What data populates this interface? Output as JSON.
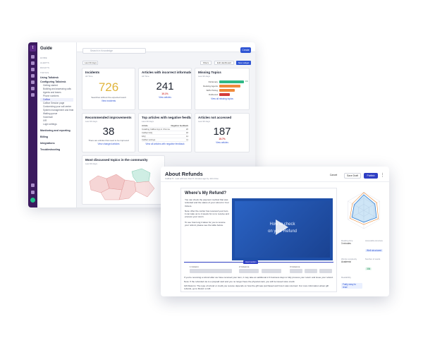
{
  "dashboard": {
    "app_title": "Guide",
    "search_placeholder": "Search in Knowledge",
    "create_label": "Create",
    "nav": {
      "sections": [
        "HOME",
        "ALERTS",
        "DRAFTS"
      ],
      "topics_label": "TOPICS",
      "items": [
        "Using Talkdesk",
        "Configuring Talkdesk"
      ],
      "sub_items": [
        "Getting started",
        "Building and assessing calls",
        "Agents and teams",
        "Phone numbers",
        "Callbar",
        "Callbar Session page",
        "Customizing your call center",
        "System management and features",
        "Waiting queue",
        "Voicemail",
        "IVR",
        "Login settings"
      ],
      "bottom_items": [
        "Monitoring and reporting",
        "Billing",
        "Integrations",
        "Troubleshooting"
      ]
    },
    "filter": {
      "date_range": "Last 30 days",
      "filters_label": "Filters",
      "edit_label": "Edit dashboard",
      "new_widget_label": "New widget"
    },
    "cards": {
      "incidents": {
        "title": "Incidents",
        "meta": "All Time",
        "value": "726",
        "text": "Searches without the expected result",
        "link": "View incidents",
        "color": "#e0b43a"
      },
      "incorrect": {
        "title": "Articles with incorrect information",
        "meta": "All Time",
        "value": "241",
        "pct": "10.1%",
        "link": "View articles",
        "pct_color": "#d33b3b"
      },
      "missing": {
        "title": "Missing Topics",
        "meta": "Last 30 days",
        "link": "View all missing topics",
        "rows": [
          {
            "label": "Dictionary",
            "pct": 92,
            "color": "#2fb885",
            "tag": "1%"
          },
          {
            "label": "Desking Agents",
            "pct": 80,
            "color": "#f08a3c",
            "tag": ""
          },
          {
            "label": "SMS Pricing",
            "pct": 58,
            "color": "#f08a3c",
            "tag": ""
          },
          {
            "label": "Outbound",
            "pct": 40,
            "color": "#d33b3b",
            "tag": ""
          }
        ]
      },
      "improvements": {
        "title": "Recommended improvements",
        "meta": "Last 30 days",
        "value": "38",
        "text": "There are articles that need to be improved",
        "link": "View changed articles"
      },
      "negative": {
        "title": "Top articles with negative feedback",
        "meta": "Last 30 days",
        "col1": "Article",
        "col2": "Negative feedback",
        "rows": [
          [
            "Installing Callbar App in Chrome",
            "20"
          ],
          [
            "Callbar FAQ",
            "18"
          ],
          [
            "FAQ",
            "14"
          ],
          [
            "Callbar settings",
            "11"
          ]
        ],
        "link": "View all articles with negative feedback"
      },
      "not_accessed": {
        "title": "Articles not accessed",
        "meta": "Last 30 days",
        "value": "187",
        "pct": "15.7%",
        "link": "View articles",
        "pct_color": "#d33b3b"
      },
      "discussed": {
        "title": "Most discussed topics in the community",
        "meta": "Last 30 days"
      }
    }
  },
  "editor": {
    "title": "About Refunds",
    "subtitle": "Last edit less than 5 minutes ago by John Doe",
    "category": "Callbar",
    "cancel_label": "Cancel",
    "save_label": "Save Draft",
    "publish_label": "Publish",
    "doc_heading": "Where's My Refund?",
    "doc_intro": "You can check the payment method that was refunded and the status of your refund in Your Orders.",
    "doc_note": "Note: After the carrier has received your item, it can take up to 2 weeks for us to receive and process your return.",
    "doc_video_hint": "To see how long it takes for you to receive your refund, please see the table below.",
    "video_line1": "How to check",
    "video_line2": "on your Refund",
    "columns_badge": "Insert section",
    "columns": [
      "1 Column",
      "2 Columns",
      "3 Columns"
    ],
    "doc_p1": "If you're receiving a refund after we have received your item, it may take an additional 2-3 business days to fully process your return and issue your refund.",
    "doc_p2": "Note: If the refunded via to a prepaid card and you no longer have the physical card, you will be issued store credit.",
    "doc_p3": "Gift Returns: The type of refund or credit you receive depends on how the gift was purchased and how it was returned. For more information about gift refunds, go to Return a Gift.",
    "stats": [
      {
        "label": "Reading time",
        "value": "3 minutes",
        "style": ""
      },
      {
        "label": "Accessible structure",
        "value": "Well structured",
        "style": "blue"
      },
      {
        "label": "Words complexity",
        "value": "Academic",
        "style": ""
      },
      {
        "label": "Number of words",
        "value": "336",
        "style": "green"
      },
      {
        "label": "Readability",
        "value": "Fairly easy to read",
        "style": "blue"
      }
    ],
    "radar_values": [
      0.85,
      0.7,
      0.8,
      0.65,
      0.75,
      0.6
    ]
  }
}
